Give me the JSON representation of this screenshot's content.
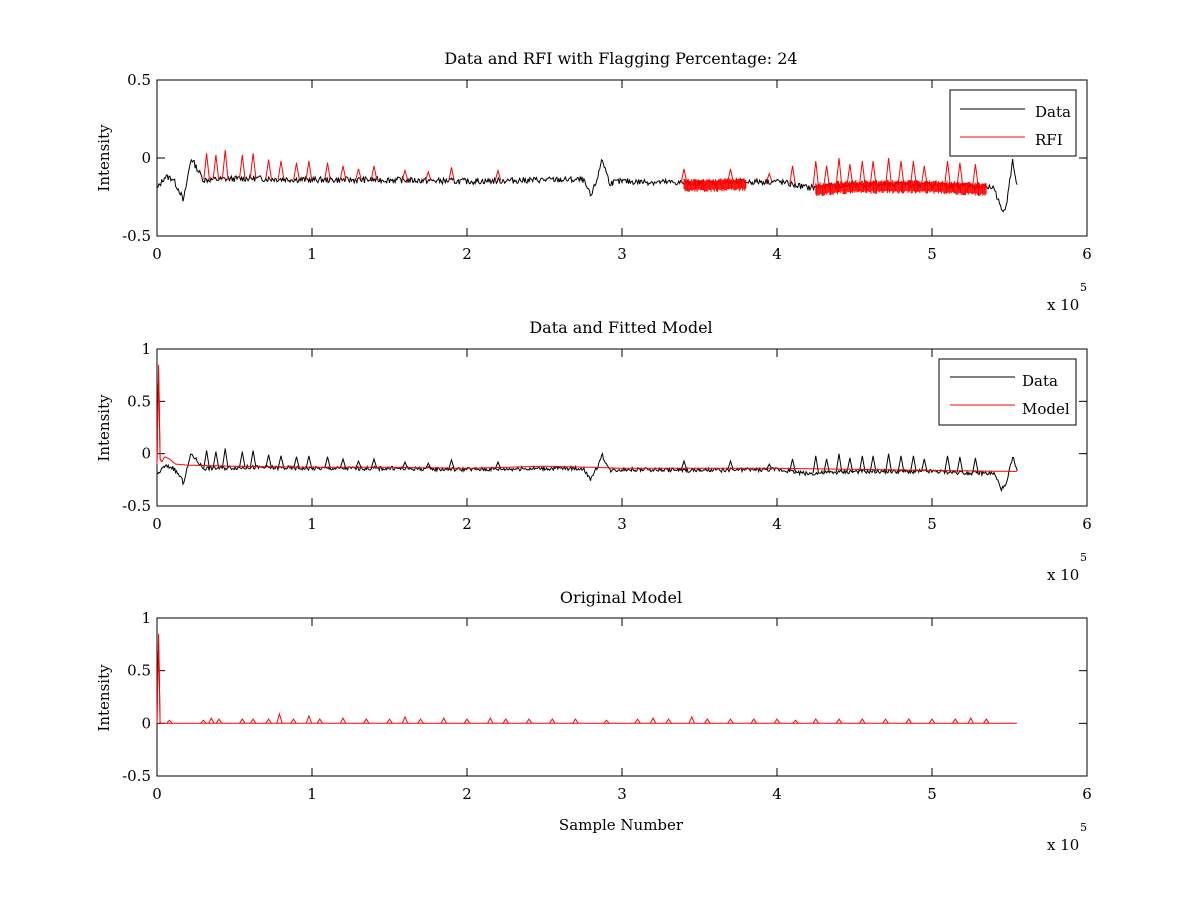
{
  "figure": {
    "background": "#ffffff"
  },
  "chart_data": [
    {
      "type": "line",
      "title": "Data and RFI with Flagging Percentage: 24",
      "xlabel": "",
      "ylabel": "Intensity",
      "xlim": [
        0,
        600000
      ],
      "ylim": [
        -0.5,
        0.5
      ],
      "x_ticks": [
        "0",
        "1",
        "2",
        "3",
        "4",
        "5",
        "6"
      ],
      "y_ticks": [
        "-0.5",
        "0",
        "0.5"
      ],
      "x_exponent_base": "x 10",
      "x_exponent_power": "5",
      "legend_position": "top-right",
      "grid": false,
      "series": [
        {
          "name": "Data",
          "color": "#000000",
          "x": [
            0,
            5000,
            10000,
            15000,
            17000,
            22000,
            30000,
            60000,
            100000,
            150000,
            200000,
            250000,
            275000,
            280000,
            285000,
            287000,
            292000,
            300000,
            350000,
            400000,
            420000,
            450000,
            500000,
            520000,
            540000,
            545000,
            548000,
            552000,
            555000
          ],
          "y": [
            -0.2,
            -0.12,
            -0.13,
            -0.22,
            -0.28,
            0.0,
            -0.14,
            -0.13,
            -0.14,
            -0.14,
            -0.15,
            -0.14,
            -0.14,
            -0.25,
            -0.1,
            0.0,
            -0.16,
            -0.15,
            -0.16,
            -0.15,
            -0.19,
            -0.17,
            -0.17,
            -0.18,
            -0.19,
            -0.34,
            -0.3,
            -0.02,
            -0.18
          ]
        },
        {
          "name": "RFI",
          "color": "#ff0000",
          "spikes_x": [
            32000,
            38000,
            44000,
            55000,
            62000,
            72000,
            80000,
            90000,
            98000,
            110000,
            120000,
            130000,
            140000,
            160000,
            175000,
            190000,
            220000,
            340000,
            370000,
            395000,
            410000,
            425000,
            432000,
            440000,
            447000,
            455000,
            462000,
            472000,
            480000,
            488000,
            495000,
            510000,
            518000,
            528000
          ],
          "spikes_peak": [
            0.03,
            0.02,
            0.05,
            0.02,
            0.03,
            -0.01,
            -0.02,
            -0.03,
            -0.02,
            -0.03,
            -0.05,
            -0.07,
            -0.05,
            -0.08,
            -0.09,
            -0.06,
            -0.08,
            -0.07,
            -0.07,
            -0.1,
            -0.05,
            -0.02,
            -0.05,
            0.0,
            -0.04,
            -0.02,
            -0.02,
            0.0,
            -0.02,
            -0.02,
            -0.05,
            -0.02,
            -0.03,
            -0.04
          ],
          "dense_band_ranges": [
            [
              340000,
              380000
            ],
            [
              425000,
              535000
            ]
          ]
        }
      ]
    },
    {
      "type": "line",
      "title": "Data and Fitted Model",
      "xlabel": "",
      "ylabel": "Intensity",
      "xlim": [
        0,
        600000
      ],
      "ylim": [
        -0.5,
        1
      ],
      "x_ticks": [
        "0",
        "1",
        "2",
        "3",
        "4",
        "5",
        "6"
      ],
      "y_ticks": [
        "-0.5",
        "0",
        "0.5",
        "1"
      ],
      "x_exponent_base": "x 10",
      "x_exponent_power": "5",
      "legend_position": "top-right",
      "grid": false,
      "series": [
        {
          "name": "Data",
          "color": "#000000",
          "x": [
            0,
            5000,
            10000,
            15000,
            17000,
            22000,
            30000,
            60000,
            100000,
            150000,
            200000,
            250000,
            275000,
            280000,
            285000,
            287000,
            292000,
            300000,
            350000,
            400000,
            420000,
            450000,
            500000,
            520000,
            540000,
            545000,
            548000,
            552000,
            555000
          ],
          "y": [
            -0.2,
            -0.12,
            -0.13,
            -0.22,
            -0.28,
            0.0,
            -0.14,
            -0.13,
            -0.14,
            -0.14,
            -0.15,
            -0.14,
            -0.14,
            -0.25,
            -0.1,
            0.0,
            -0.16,
            -0.15,
            -0.16,
            -0.15,
            -0.19,
            -0.17,
            -0.17,
            -0.18,
            -0.19,
            -0.34,
            -0.3,
            -0.02,
            -0.18
          ],
          "spikes_x": [
            32000,
            38000,
            44000,
            55000,
            62000,
            72000,
            80000,
            90000,
            98000,
            110000,
            120000,
            130000,
            140000,
            160000,
            175000,
            190000,
            220000,
            340000,
            370000,
            395000,
            410000,
            425000,
            432000,
            440000,
            447000,
            455000,
            462000,
            472000,
            480000,
            488000,
            495000,
            510000,
            518000,
            528000
          ],
          "spikes_peak": [
            0.03,
            0.02,
            0.05,
            0.02,
            0.03,
            -0.01,
            -0.02,
            -0.03,
            -0.02,
            -0.03,
            -0.05,
            -0.07,
            -0.05,
            -0.08,
            -0.09,
            -0.06,
            -0.08,
            -0.07,
            -0.07,
            -0.1,
            -0.05,
            -0.02,
            -0.05,
            0.0,
            -0.04,
            -0.02,
            -0.02,
            0.0,
            -0.02,
            -0.02,
            -0.05,
            -0.02,
            -0.03,
            -0.04
          ]
        },
        {
          "name": "Model",
          "color": "#ff0000",
          "x": [
            0,
            1000,
            2000,
            3000,
            5000,
            8000,
            12000,
            20000,
            50000,
            100000,
            150000,
            200000,
            250000,
            280000,
            300000,
            350000,
            400000,
            450000,
            500000,
            555000
          ],
          "y": [
            -0.1,
            0.85,
            -0.05,
            -0.08,
            -0.03,
            -0.05,
            -0.1,
            -0.11,
            -0.12,
            -0.13,
            -0.13,
            -0.14,
            -0.12,
            -0.13,
            -0.14,
            -0.14,
            -0.14,
            -0.15,
            -0.16,
            -0.17
          ]
        }
      ]
    },
    {
      "type": "line",
      "title": "Original Model",
      "xlabel": "Sample Number",
      "ylabel": "Intensity",
      "xlim": [
        0,
        600000
      ],
      "ylim": [
        -0.5,
        1
      ],
      "x_ticks": [
        "0",
        "1",
        "2",
        "3",
        "4",
        "5",
        "6"
      ],
      "y_ticks": [
        "-0.5",
        "0",
        "0.5",
        "1"
      ],
      "x_exponent_base": "x 10",
      "x_exponent_power": "5",
      "grid": false,
      "series": [
        {
          "name": "",
          "color": "#ff0000",
          "x": [
            0,
            1000,
            2000,
            3000,
            555000
          ],
          "y": [
            0,
            0.85,
            0.0,
            0.0,
            0.0
          ],
          "spikes_x": [
            8000,
            30000,
            35000,
            40000,
            55000,
            62000,
            72000,
            79000,
            88000,
            98000,
            105000,
            120000,
            135000,
            150000,
            160000,
            170000,
            185000,
            200000,
            215000,
            225000,
            240000,
            255000,
            270000,
            290000,
            310000,
            320000,
            330000,
            345000,
            355000,
            370000,
            385000,
            400000,
            412000,
            425000,
            440000,
            455000,
            470000,
            485000,
            500000,
            515000,
            525000,
            535000
          ],
          "spikes_peak": [
            0.03,
            0.03,
            0.05,
            0.04,
            0.04,
            0.04,
            0.04,
            0.09,
            0.04,
            0.07,
            0.04,
            0.05,
            0.04,
            0.04,
            0.06,
            0.04,
            0.05,
            0.04,
            0.05,
            0.04,
            0.04,
            0.04,
            0.04,
            0.03,
            0.04,
            0.05,
            0.04,
            0.06,
            0.04,
            0.04,
            0.04,
            0.04,
            0.03,
            0.04,
            0.04,
            0.04,
            0.04,
            0.04,
            0.04,
            0.04,
            0.05,
            0.04
          ]
        }
      ]
    }
  ]
}
